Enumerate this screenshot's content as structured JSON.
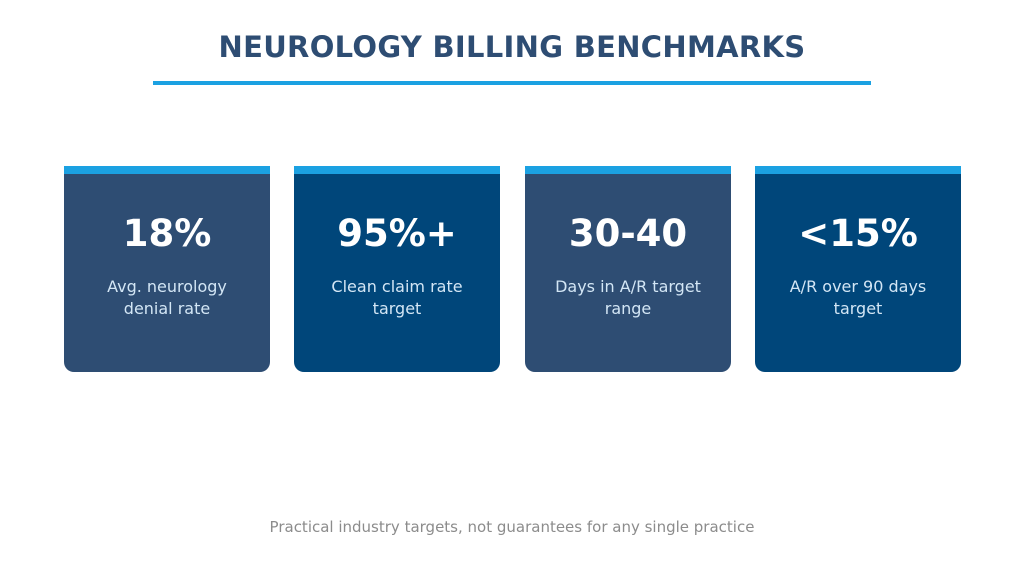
{
  "title": "NEUROLOGY BILLING BENCHMARKS",
  "colors": {
    "title": "#2e4d73",
    "accent": "#1ba1e2",
    "card_slate": "#2e4d73",
    "card_navy": "#00467a",
    "card_label": "#d3e6f5",
    "footnote": "#8c8c8c"
  },
  "cards": [
    {
      "value": "18%",
      "label": "Avg. neurology denial rate"
    },
    {
      "value": "95%+",
      "label": "Clean claim rate target"
    },
    {
      "value": "30-40",
      "label": "Days in A/R target range"
    },
    {
      "value": "<15%",
      "label": "A/R over 90 days target"
    }
  ],
  "footnote": "Practical industry targets, not guarantees for any single practice"
}
